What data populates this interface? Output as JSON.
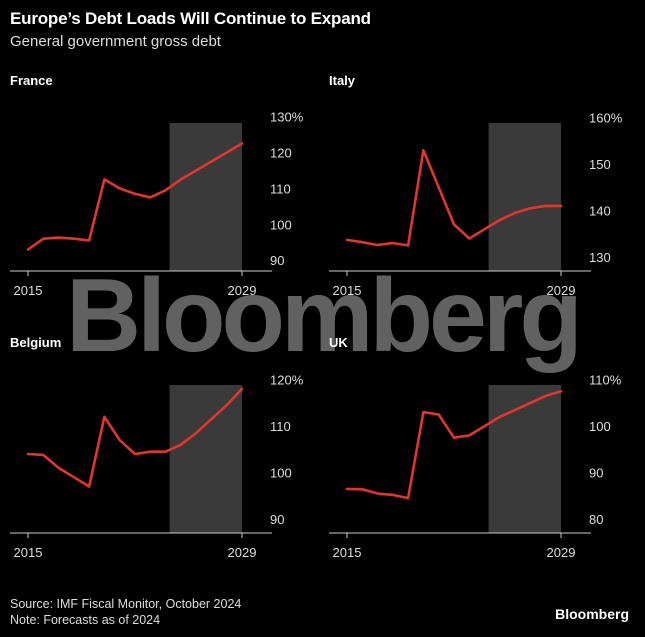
{
  "header": {
    "title": "Europe’s Debt Loads Will Continue to Expand",
    "subtitle": "General government gross debt"
  },
  "watermark": "Bloomberg",
  "footer": {
    "source": "Source: IMF Fiscal Monitor, October 2024",
    "note": "Note: Forecasts as of 2024",
    "brand": "Bloomberg"
  },
  "colors": {
    "line": "#e0362c",
    "forecast_band": "#3a3a3a",
    "background": "#000000"
  },
  "chart_data": [
    {
      "type": "line",
      "title": "France",
      "xlim": [
        2015,
        2029
      ],
      "forecast_range": [
        2024,
        2029
      ],
      "x_ticks": [
        "2015",
        "2029"
      ],
      "y_ticks": [
        {
          "value": 90,
          "label": "90"
        },
        {
          "value": 100,
          "label": "100"
        },
        {
          "value": 110,
          "label": "110"
        },
        {
          "value": 120,
          "label": "120"
        },
        {
          "value": 130,
          "label": "130%"
        }
      ],
      "ylim": [
        87,
        131
      ],
      "x": [
        2015,
        2016,
        2017,
        2018,
        2019,
        2020,
        2021,
        2022,
        2023,
        2024,
        2025,
        2026,
        2027,
        2028,
        2029
      ],
      "values": [
        93,
        96,
        96.3,
        96,
        95.5,
        112.5,
        110,
        108.5,
        107.5,
        109.5,
        112.5,
        115,
        117.5,
        120,
        122.5
      ]
    },
    {
      "type": "line",
      "title": "Italy",
      "xlim": [
        2015,
        2029
      ],
      "forecast_range": [
        2024,
        2029
      ],
      "x_ticks": [
        "2015",
        "2029"
      ],
      "y_ticks": [
        {
          "value": 130,
          "label": "130"
        },
        {
          "value": 140,
          "label": "140"
        },
        {
          "value": 150,
          "label": "150"
        },
        {
          "value": 160,
          "label": "160%"
        }
      ],
      "ylim": [
        127,
        161
      ],
      "x": [
        2015,
        2016,
        2017,
        2018,
        2019,
        2020,
        2021,
        2022,
        2023,
        2024,
        2025,
        2026,
        2027,
        2028,
        2029
      ],
      "values": [
        133.7,
        133.2,
        132.6,
        133,
        132.5,
        153,
        145,
        137,
        134,
        136,
        138,
        139.5,
        140.5,
        141,
        141
      ]
    },
    {
      "type": "line",
      "title": "Belgium",
      "xlim": [
        2015,
        2029
      ],
      "forecast_range": [
        2024,
        2029
      ],
      "x_ticks": [
        "2015",
        "2029"
      ],
      "y_ticks": [
        {
          "value": 90,
          "label": "90"
        },
        {
          "value": 100,
          "label": "100"
        },
        {
          "value": 110,
          "label": "110"
        },
        {
          "value": 120,
          "label": "120%"
        }
      ],
      "ylim": [
        87,
        121
      ],
      "x": [
        2015,
        2016,
        2017,
        2018,
        2019,
        2020,
        2021,
        2022,
        2023,
        2024,
        2025,
        2026,
        2027,
        2028,
        2029
      ],
      "values": [
        104,
        103.8,
        101,
        99,
        97,
        112,
        107,
        104,
        104.5,
        104.5,
        106,
        108.5,
        111.5,
        114.5,
        118
      ]
    },
    {
      "type": "line",
      "title": "UK",
      "xlim": [
        2015,
        2029
      ],
      "forecast_range": [
        2024,
        2029
      ],
      "x_ticks": [
        "2015",
        "2029"
      ],
      "y_ticks": [
        {
          "value": 80,
          "label": "80"
        },
        {
          "value": 90,
          "label": "90"
        },
        {
          "value": 100,
          "label": "100"
        },
        {
          "value": 110,
          "label": "110%"
        }
      ],
      "ylim": [
        77,
        111
      ],
      "x": [
        2015,
        2016,
        2017,
        2018,
        2019,
        2020,
        2021,
        2022,
        2023,
        2024,
        2025,
        2026,
        2027,
        2028,
        2029
      ],
      "values": [
        86.5,
        86.4,
        85.5,
        85.2,
        84.5,
        103,
        102.5,
        97.5,
        98,
        100,
        102,
        103.5,
        105,
        106.5,
        107.5
      ]
    }
  ]
}
